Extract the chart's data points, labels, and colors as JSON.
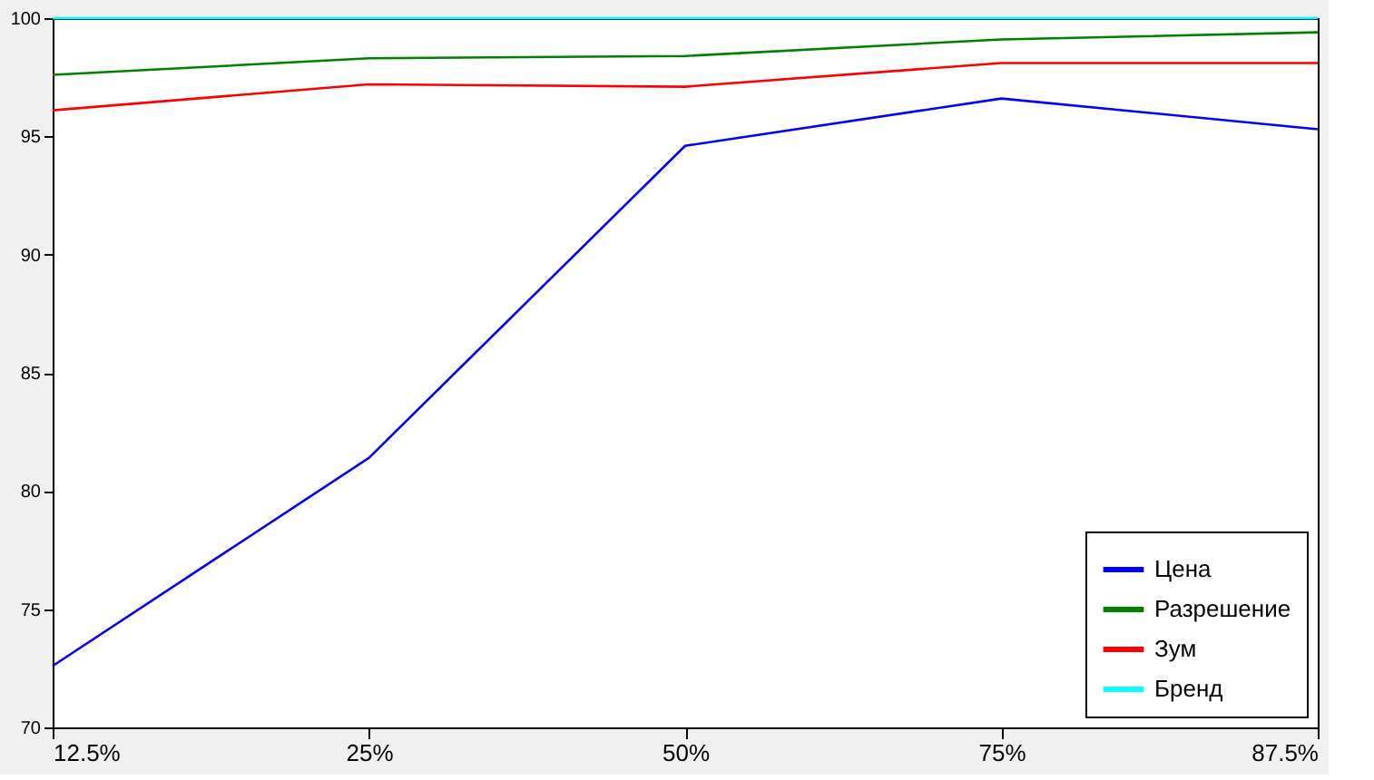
{
  "chart_data": {
    "type": "line",
    "categories": [
      "12.5%",
      "25%",
      "50%",
      "75%",
      "87.5%"
    ],
    "series": [
      {
        "name": "Цена",
        "color": "#0000ff",
        "values": [
          72.6,
          81.4,
          94.6,
          96.6,
          95.3
        ]
      },
      {
        "name": "Разрешение",
        "color": "#008000",
        "values": [
          97.6,
          98.3,
          98.4,
          99.1,
          99.4
        ]
      },
      {
        "name": "Зум",
        "color": "#ff0000",
        "values": [
          96.1,
          97.2,
          97.1,
          98.1,
          98.1
        ]
      },
      {
        "name": "Бренд",
        "color": "#00ffff",
        "values": [
          100,
          100,
          100,
          100,
          100
        ]
      }
    ],
    "ylim": [
      70,
      100
    ],
    "yticks": [
      70,
      75,
      80,
      85,
      90,
      95,
      100
    ],
    "grid": false,
    "legend": "bottom right",
    "marker": "none",
    "line_style": "solid"
  }
}
